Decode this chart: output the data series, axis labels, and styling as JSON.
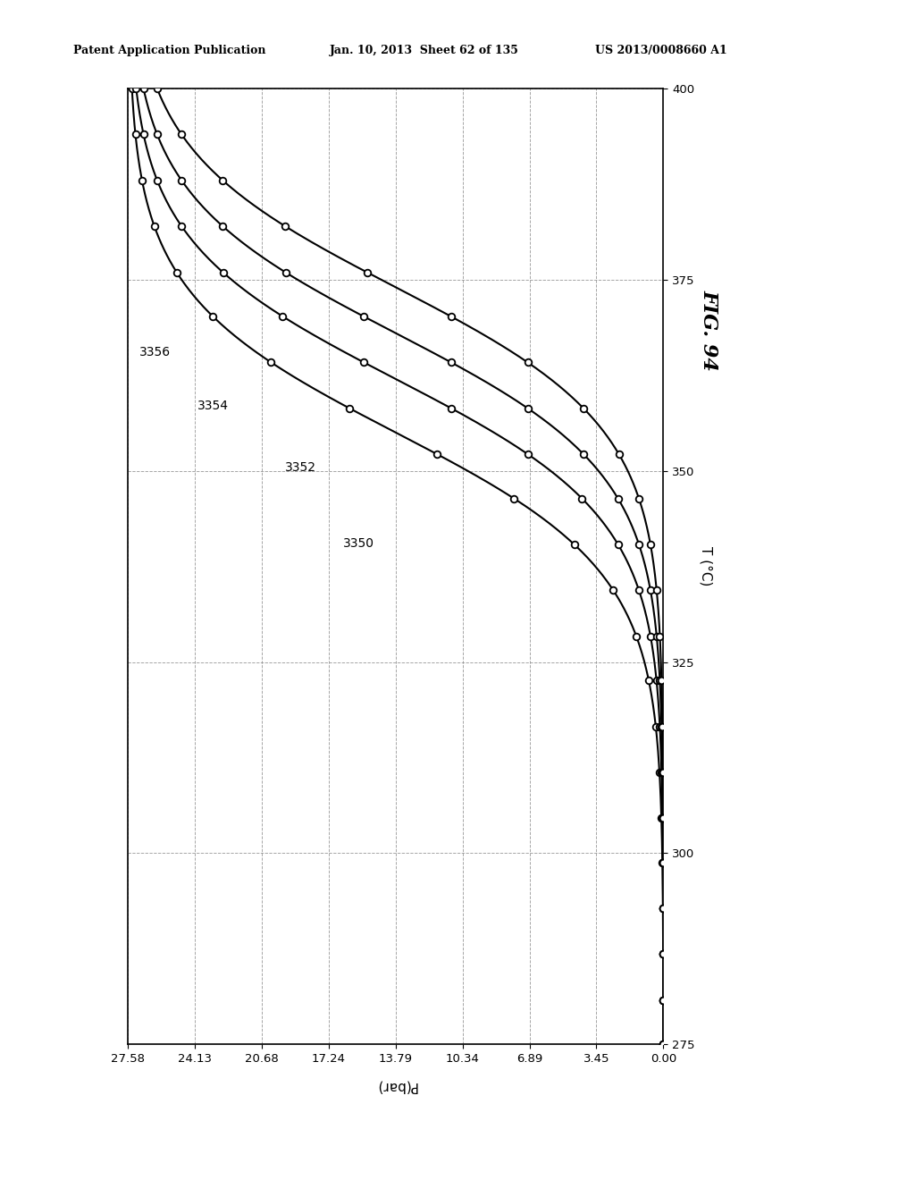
{
  "title": "FIG. 94",
  "T_label": "T (°C)",
  "P_label": "P(bar)",
  "T_min": 275,
  "T_max": 400,
  "P_min": 0,
  "P_max": 27.58,
  "T_ticks": [
    275,
    300,
    325,
    350,
    375,
    400
  ],
  "P_ticks": [
    0,
    3.45,
    6.89,
    10.34,
    13.79,
    17.24,
    20.68,
    24.13,
    27.58
  ],
  "header_left": "Patent Application Publication",
  "header_center": "Jan. 10, 2013  Sheet 62 of 135",
  "header_right": "US 2013/0008660 A1",
  "curve_labels": [
    "3350",
    "3352",
    "3354",
    "3356"
  ],
  "background_color": "#ffffff",
  "line_color": "#000000",
  "curve_T_mids": [
    355,
    362,
    368,
    374
  ],
  "curve_steepness": [
    0.11,
    0.11,
    0.11,
    0.11
  ],
  "n_markers": 22
}
